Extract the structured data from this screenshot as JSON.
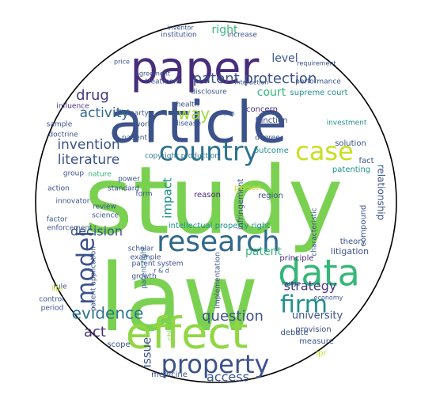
{
  "title": "",
  "palette": {
    "deep_purple": "#440154",
    "indigo": "#3b528b",
    "slate_blue": "#31688e",
    "teal": "#21918c",
    "sea_green": "#35b779",
    "green": "#5ec962",
    "lime": "#90d743",
    "yellow": "#c8e020",
    "outline": "#000000"
  },
  "words": [
    {
      "id": "study",
      "text": "study",
      "color": "#7ad151"
    },
    {
      "id": "law",
      "text": "law",
      "color": "#7ad151"
    },
    {
      "id": "article",
      "text": "article",
      "color": "#3b528b"
    },
    {
      "id": "paper",
      "text": "paper",
      "color": "#472d7b"
    },
    {
      "id": "effect",
      "text": "effect",
      "color": "#90d743"
    },
    {
      "id": "data",
      "text": "data",
      "color": "#35b779"
    },
    {
      "id": "research",
      "text": "research",
      "color": "#31688e"
    },
    {
      "id": "country",
      "text": "country",
      "color": "#2c728e"
    },
    {
      "id": "property",
      "text": "property",
      "color": "#3b528b"
    },
    {
      "id": "case",
      "text": "case",
      "color": "#c8e020"
    },
    {
      "id": "firm",
      "text": "firm",
      "color": "#21918c"
    },
    {
      "id": "model",
      "text": "model",
      "color": "#3b528b"
    },
    {
      "id": "patent-protection",
      "text": "patent protection",
      "color": "#3b528b"
    },
    {
      "id": "evidence",
      "text": "evidence",
      "color": "#2c728e"
    },
    {
      "id": "question",
      "text": "question",
      "color": "#3b528b"
    },
    {
      "id": "access",
      "text": "access",
      "color": "#3b528b"
    },
    {
      "id": "act",
      "text": "act",
      "color": "#472d7b"
    },
    {
      "id": "issue",
      "text": "issue",
      "color": "#3b528b"
    },
    {
      "id": "way",
      "text": "way",
      "color": "#a0da39"
    },
    {
      "id": "drug",
      "text": "drug",
      "color": "#443983"
    },
    {
      "id": "activity",
      "text": "activity",
      "color": "#31688e"
    },
    {
      "id": "invention",
      "text": "invention",
      "color": "#3b528b"
    },
    {
      "id": "literature",
      "text": "literature",
      "color": "#3b528b"
    },
    {
      "id": "decision",
      "text": "decision",
      "color": "#3b528b"
    },
    {
      "id": "impact",
      "text": "impact",
      "color": "#21918c"
    },
    {
      "id": "strategy",
      "text": "strategy",
      "color": "#443983"
    },
    {
      "id": "university",
      "text": "university",
      "color": "#3b528b"
    },
    {
      "id": "level",
      "text": "level",
      "color": "#3b528b"
    },
    {
      "id": "right",
      "text": "right",
      "color": "#35b779"
    },
    {
      "id": "court",
      "text": "court",
      "color": "#35b779"
    },
    {
      "id": "patent",
      "text": "patent",
      "color": "#35b779"
    },
    {
      "id": "relationship",
      "text": "relationship",
      "color": "#3b528b"
    },
    {
      "id": "intellectual-property-right",
      "text": "intellectual property right",
      "color": "#21918c"
    },
    {
      "id": "infringement",
      "text": "infringement",
      "color": "#3b528b"
    },
    {
      "id": "reason",
      "text": "reason",
      "color": "#472d7b"
    },
    {
      "id": "region",
      "text": "region",
      "color": "#3b528b"
    },
    {
      "id": "person",
      "text": "person",
      "color": "#c8e020"
    },
    {
      "id": "copyright-production",
      "text": "copyright production",
      "color": "#2c728e"
    },
    {
      "id": "function",
      "text": "function",
      "color": "#3b528b"
    },
    {
      "id": "concern",
      "text": "concern",
      "color": "#472d7b"
    },
    {
      "id": "outcome",
      "text": "outcome",
      "color": "#21918c"
    },
    {
      "id": "degree",
      "text": "degree",
      "color": "#3b528b"
    },
    {
      "id": "supreme-court",
      "text": "supreme court",
      "color": "#21918c"
    },
    {
      "id": "performance",
      "text": "performance",
      "color": "#3b528b"
    },
    {
      "id": "solution",
      "text": "solution",
      "color": "#3b528b"
    },
    {
      "id": "fact",
      "text": "fact",
      "color": "#3b528b"
    },
    {
      "id": "patenting",
      "text": "patenting",
      "color": "#21918c"
    },
    {
      "id": "investment",
      "text": "investment",
      "color": "#21918c"
    },
    {
      "id": "theory",
      "text": "theory",
      "color": "#3b528b"
    },
    {
      "id": "litigation",
      "text": "litigation",
      "color": "#3b528b"
    },
    {
      "id": "compound",
      "text": "compound",
      "color": "#3b528b"
    },
    {
      "id": "principle",
      "text": "principle",
      "color": "#472d7b"
    },
    {
      "id": "characteristic",
      "text": "characteristic",
      "color": "#3b528b"
    },
    {
      "id": "range",
      "text": "range",
      "color": "#3b528b"
    },
    {
      "id": "economy",
      "text": "economy",
      "color": "#3b528b"
    },
    {
      "id": "measure",
      "text": "measure",
      "color": "#3b528b"
    },
    {
      "id": "provision",
      "text": "provision",
      "color": "#3b528b"
    },
    {
      "id": "ipr",
      "text": "ipr",
      "color": "#c8e020"
    },
    {
      "id": "debate",
      "text": "debate",
      "color": "#3b528b"
    },
    {
      "id": "implementation",
      "text": "implementation",
      "color": "#3b528b"
    },
    {
      "id": "china",
      "text": "china",
      "color": "#7ad151"
    },
    {
      "id": "medicine",
      "text": "medicine",
      "color": "#3b528b"
    },
    {
      "id": "scope",
      "text": "scope",
      "color": "#3b528b"
    },
    {
      "id": "patent-system",
      "text": "patent system",
      "color": "#3b528b"
    },
    {
      "id": "patent-right",
      "text": "patent right",
      "color": "#31688e"
    },
    {
      "id": "patent-application",
      "text": "patent application",
      "color": "#3b528b"
    },
    {
      "id": "growth",
      "text": "growth",
      "color": "#3b528b"
    },
    {
      "id": "r-and-d",
      "text": "r & d",
      "color": "#3b528b"
    },
    {
      "id": "example",
      "text": "example",
      "color": "#3b528b"
    },
    {
      "id": "scholar",
      "text": "scholar",
      "color": "#3b528b"
    },
    {
      "id": "science",
      "text": "science",
      "color": "#3b528b"
    },
    {
      "id": "review",
      "text": "review",
      "color": "#3b528b"
    },
    {
      "id": "form",
      "text": "form",
      "color": "#3b528b"
    },
    {
      "id": "power",
      "text": "power",
      "color": "#3b528b"
    },
    {
      "id": "standard",
      "text": "standard",
      "color": "#3b528b"
    },
    {
      "id": "nature",
      "text": "nature",
      "color": "#35b779"
    },
    {
      "id": "group",
      "text": "group",
      "color": "#3b528b"
    },
    {
      "id": "innovator",
      "text": "innovator",
      "color": "#3b528b"
    },
    {
      "id": "action",
      "text": "action",
      "color": "#3b528b"
    },
    {
      "id": "factor",
      "text": "factor",
      "color": "#3b528b"
    },
    {
      "id": "enforcement",
      "text": "enforcement",
      "color": "#3b528b"
    },
    {
      "id": "control",
      "text": "control",
      "color": "#3b528b"
    },
    {
      "id": "period",
      "text": "period",
      "color": "#3b528b"
    },
    {
      "id": "rule",
      "text": "rule",
      "color": "#3b528b"
    },
    {
      "id": "life",
      "text": "life",
      "color": "#c8e020"
    },
    {
      "id": "doctrine",
      "text": "doctrine",
      "color": "#3b528b"
    },
    {
      "id": "sample",
      "text": "sample",
      "color": "#3b528b"
    },
    {
      "id": "influence",
      "text": "influence",
      "color": "#472d7b"
    },
    {
      "id": "patient",
      "text": "patient",
      "color": "#3b528b"
    },
    {
      "id": "party",
      "text": "party",
      "color": "#3b528b"
    },
    {
      "id": "work",
      "text": "work",
      "color": "#3b528b"
    },
    {
      "id": "disease",
      "text": "disease",
      "color": "#3b528b"
    },
    {
      "id": "health",
      "text": "health",
      "color": "#3b528b"
    },
    {
      "id": "claim",
      "text": "claim",
      "color": "#3b528b"
    },
    {
      "id": "disclosure",
      "text": "disclosure",
      "color": "#3b528b"
    },
    {
      "id": "treatment",
      "text": "treatment",
      "color": "#3b528b"
    },
    {
      "id": "interaction",
      "text": "interaction",
      "color": "#3b528b"
    },
    {
      "id": "agreement",
      "text": "agreement",
      "color": "#3b528b"
    },
    {
      "id": "price",
      "text": "price",
      "color": "#3b528b"
    },
    {
      "id": "requirement",
      "text": "requirement",
      "color": "#3b528b"
    },
    {
      "id": "institution",
      "text": "institution",
      "color": "#3b528b"
    },
    {
      "id": "inventor",
      "text": "inventor",
      "color": "#3b528b"
    },
    {
      "id": "increase",
      "text": "increase",
      "color": "#3b528b"
    }
  ]
}
